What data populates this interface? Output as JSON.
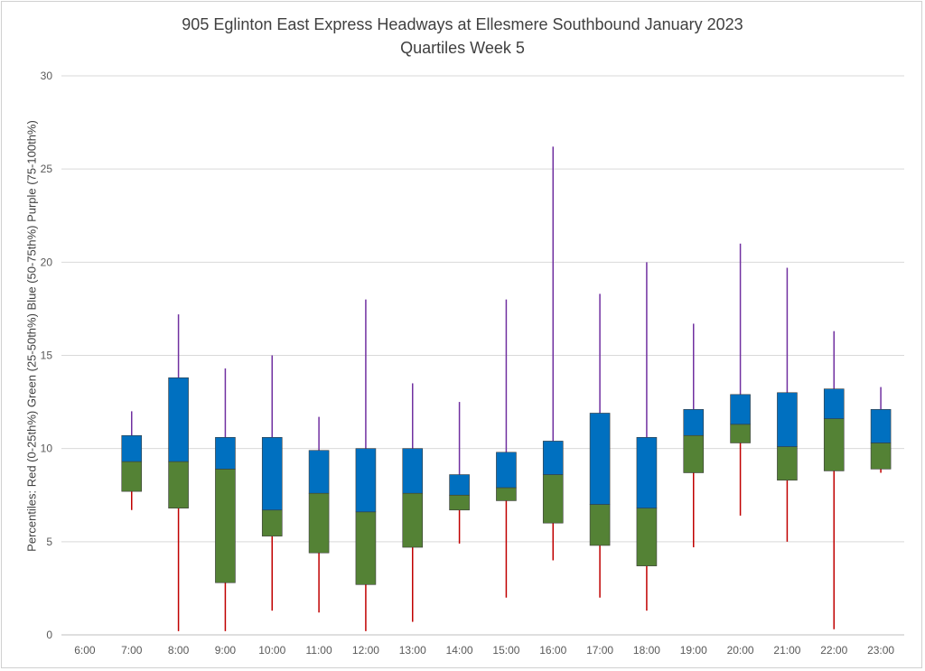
{
  "chart_data": {
    "type": "box",
    "title": "905 Eglinton East Express Headways at Ellesmere Southbound January 2023",
    "subtitle": "Quartiles Week 5",
    "ylabel": "Percentiles:  Red (0-25th%)  Green (25-50th%)  Blue (50-75th%)  Purple (75-100th%)",
    "ylim": [
      0,
      30
    ],
    "yticks": [
      0,
      5,
      10,
      15,
      20,
      25,
      30
    ],
    "grid": true,
    "colors": {
      "min_to_q1": "#c00000",
      "q1_to_median": "#548235",
      "median_to_q3": "#0070c0",
      "q3_to_max": "#7030a0"
    },
    "categories": [
      "6:00",
      "7:00",
      "8:00",
      "9:00",
      "10:00",
      "11:00",
      "12:00",
      "13:00",
      "14:00",
      "15:00",
      "16:00",
      "17:00",
      "18:00",
      "19:00",
      "20:00",
      "21:00",
      "22:00",
      "23:00"
    ],
    "min": [
      null,
      6.7,
      0.2,
      0.2,
      1.3,
      1.2,
      0.2,
      0.7,
      4.9,
      2.0,
      4.0,
      2.0,
      1.3,
      4.7,
      6.4,
      5.0,
      0.3,
      8.7
    ],
    "q1": [
      null,
      7.7,
      6.8,
      2.8,
      5.3,
      4.4,
      2.7,
      4.7,
      6.7,
      7.2,
      6.0,
      4.8,
      3.7,
      8.7,
      10.3,
      8.3,
      8.8,
      8.9
    ],
    "median": [
      null,
      9.3,
      9.3,
      8.9,
      6.7,
      7.6,
      6.6,
      7.6,
      7.5,
      7.9,
      8.6,
      7.0,
      6.8,
      10.7,
      11.3,
      10.1,
      11.6,
      10.3
    ],
    "q3": [
      null,
      10.7,
      13.8,
      10.6,
      10.6,
      9.9,
      10.0,
      10.0,
      8.6,
      9.8,
      10.4,
      11.9,
      10.6,
      12.1,
      12.9,
      13.0,
      13.2,
      12.1
    ],
    "max": [
      null,
      12.0,
      17.2,
      14.3,
      15.0,
      11.7,
      18.0,
      13.5,
      12.5,
      18.0,
      26.2,
      18.3,
      20.0,
      16.7,
      21.0,
      19.7,
      16.3,
      13.3
    ]
  }
}
